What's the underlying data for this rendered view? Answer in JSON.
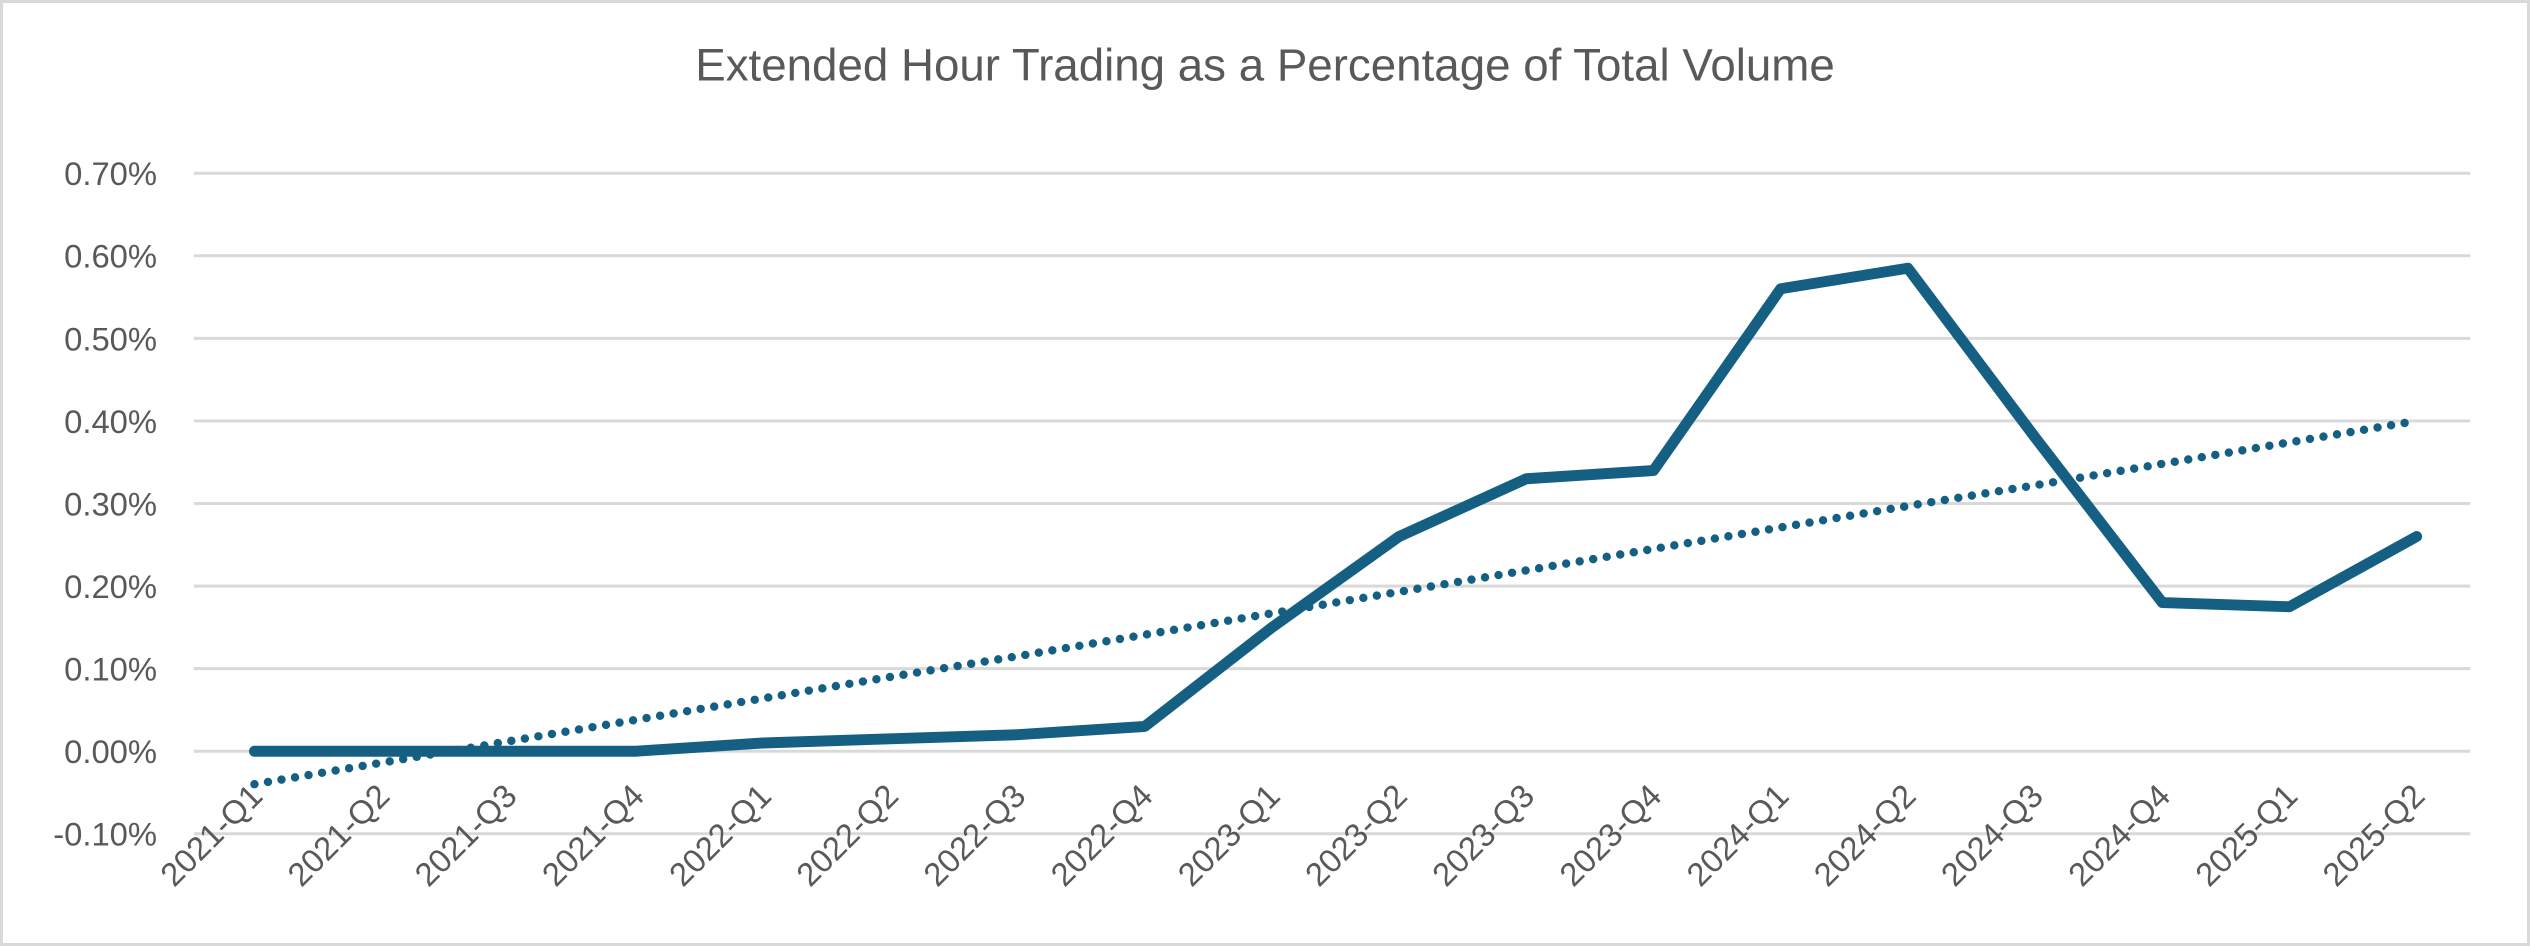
{
  "chart_data": {
    "type": "line",
    "title": "Extended Hour Trading as a Percentage of Total Volume",
    "unit": "%",
    "categories": [
      "2021-Q1",
      "2021-Q2",
      "2021-Q3",
      "2021-Q4",
      "2022-Q1",
      "2022-Q2",
      "2022-Q3",
      "2022-Q4",
      "2023-Q1",
      "2023-Q2",
      "2023-Q3",
      "2023-Q4",
      "2024-Q1",
      "2024-Q2",
      "2024-Q3",
      "2024-Q4",
      "2025-Q1",
      "2025-Q2"
    ],
    "series": [
      {
        "id": "extended-hour-share",
        "line_style": "solid",
        "values": [
          0.0,
          0.0,
          0.0,
          0.0,
          0.01,
          0.015,
          0.02,
          0.03,
          0.15,
          0.26,
          0.33,
          0.34,
          0.56,
          0.585,
          0.38,
          0.18,
          0.175,
          0.26
        ]
      },
      {
        "id": "linear-trendline",
        "line_style": "dotted",
        "values": [
          -0.04,
          -0.014,
          0.012,
          0.038,
          0.064,
          0.09,
          0.115,
          0.141,
          0.167,
          0.193,
          0.219,
          0.245,
          0.271,
          0.297,
          0.322,
          0.348,
          0.374,
          0.4
        ]
      }
    ],
    "y_axis": {
      "min": -0.1,
      "max": 0.7,
      "step": 0.1,
      "tick_labels": [
        "0.70%",
        "0.60%",
        "0.50%",
        "0.40%",
        "0.30%",
        "0.20%",
        "0.10%",
        "0.00%",
        "-0.10%"
      ]
    },
    "x_axis": {
      "tick_labels": [
        "2021-Q1",
        "2021-Q2",
        "2021-Q3",
        "2021-Q4",
        "2022-Q1",
        "2022-Q2",
        "2022-Q3",
        "2022-Q4",
        "2023-Q1",
        "2023-Q2",
        "2023-Q3",
        "2023-Q4",
        "2024-Q1",
        "2024-Q2",
        "2024-Q3",
        "2024-Q4",
        "2025-Q1",
        "2025-Q2"
      ],
      "label_rotation_deg": -45
    },
    "grid": true,
    "legend": false,
    "colors": {
      "series_line": "#156082",
      "trendline": "#156082",
      "gridline": "#D9D9D9",
      "label_text": "#595959",
      "title_text": "#595959",
      "frame_border": "#D9D9D9",
      "background": "#FFFFFF"
    }
  }
}
